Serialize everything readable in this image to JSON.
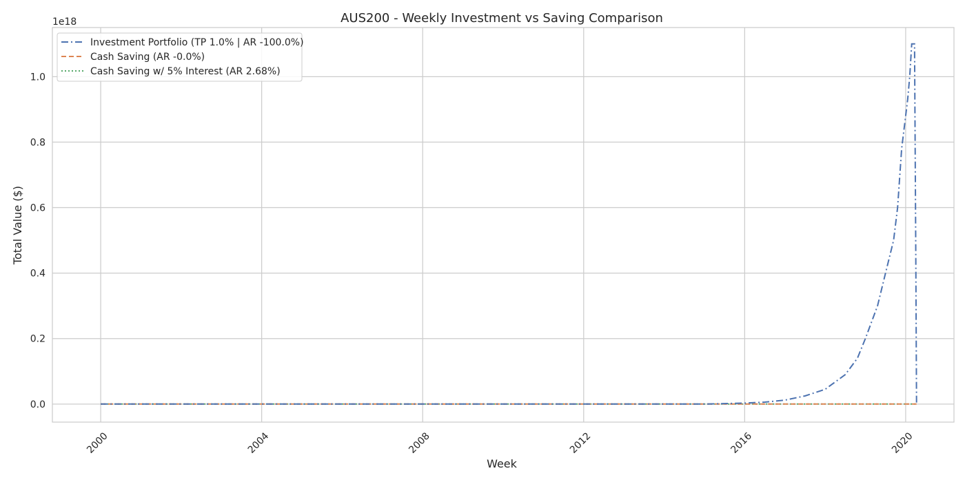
{
  "chart_data": {
    "type": "line",
    "title": "AUS200 - Weekly Investment vs Saving Comparison",
    "xlabel": "Week",
    "ylabel": "Total Value ($)",
    "y_offset_label": "1e18",
    "xlim": [
      1998.8,
      2021.2
    ],
    "ylim": [
      -0.055,
      1.15
    ],
    "x_ticks": [
      2000,
      2004,
      2008,
      2012,
      2016,
      2020
    ],
    "x_tick_labels": [
      "2000",
      "2004",
      "2008",
      "2012",
      "2016",
      "2020"
    ],
    "y_ticks": [
      0.0,
      0.2,
      0.4,
      0.6,
      0.8,
      1.0
    ],
    "y_tick_labels": [
      "0.0",
      "0.2",
      "0.4",
      "0.6",
      "0.8",
      "1.0"
    ],
    "grid": true,
    "legend_position": "top-left",
    "series": [
      {
        "name": "Investment Portfolio (TP 1.0% | AR -100.0%)",
        "color": "#4c72b0",
        "linestyle": "dashdot",
        "x": [
          2000,
          2004,
          2008,
          2012,
          2015,
          2016,
          2016.5,
          2017,
          2017.5,
          2018,
          2018.5,
          2018.8,
          2019.0,
          2019.3,
          2019.5,
          2019.7,
          2019.8,
          2019.9,
          2020.0,
          2020.05,
          2020.1,
          2020.15,
          2020.2,
          2020.22,
          2020.25,
          2020.27
        ],
        "y": [
          0.0,
          0.0,
          0.0,
          0.0,
          0.0,
          0.003,
          0.006,
          0.012,
          0.025,
          0.045,
          0.09,
          0.14,
          0.2,
          0.3,
          0.4,
          0.5,
          0.6,
          0.78,
          0.88,
          0.93,
          1.0,
          1.1,
          1.1,
          1.1,
          0.5,
          0.0
        ]
      },
      {
        "name": "Cash Saving (AR -0.0%)",
        "color": "#dd8452",
        "linestyle": "dashed",
        "x": [
          2000,
          2020.27
        ],
        "y": [
          0.0,
          0.0
        ]
      },
      {
        "name": "Cash Saving w/ 5% Interest (AR 2.68%)",
        "color": "#55a868",
        "linestyle": "dotted",
        "x": [
          2000,
          2020.27
        ],
        "y": [
          0.0,
          0.0
        ]
      }
    ]
  }
}
